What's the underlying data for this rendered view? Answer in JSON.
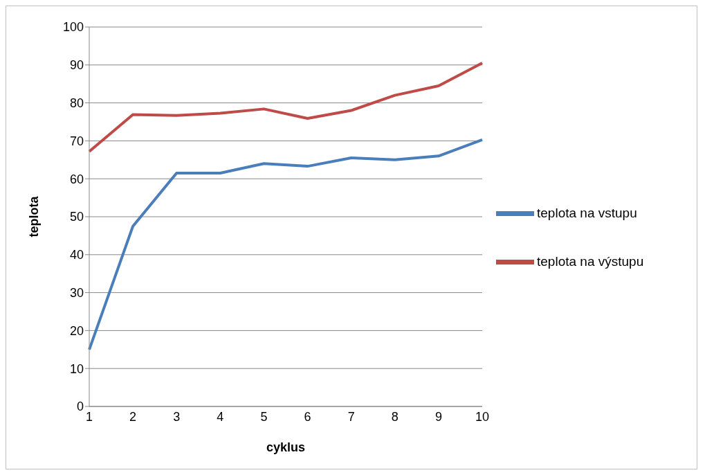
{
  "chart_data": {
    "type": "line",
    "xlabel": "cyklus",
    "ylabel": "teplota",
    "categories": [
      "1",
      "2",
      "3",
      "4",
      "5",
      "6",
      "7",
      "8",
      "9",
      "10"
    ],
    "series": [
      {
        "name": "teplota na vstupu",
        "color": "#4a7ebb",
        "values": [
          15,
          47.5,
          61.5,
          61.5,
          64,
          63.3,
          65.5,
          65,
          66,
          70.3
        ]
      },
      {
        "name": "teplota na výstupu",
        "color": "#be4b48",
        "values": [
          67.2,
          76.9,
          76.7,
          77.3,
          78.4,
          75.9,
          78,
          82,
          84.5,
          90.5
        ]
      }
    ],
    "ylim": [
      0,
      100
    ],
    "yticks": [
      0,
      10,
      20,
      30,
      40,
      50,
      60,
      70,
      80,
      90,
      100
    ],
    "grid": "y",
    "legend": "right"
  }
}
